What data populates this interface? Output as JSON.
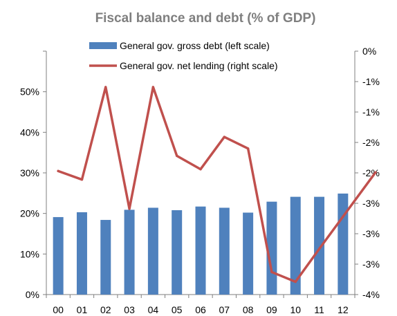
{
  "chart_data": {
    "type": "bar+line",
    "title": "Fiscal balance and debt (% of GDP)",
    "categories": [
      "00",
      "01",
      "02",
      "03",
      "04",
      "05",
      "06",
      "07",
      "08",
      "09",
      "10",
      "11",
      "12"
    ],
    "series": [
      {
        "name": "General gov. gross debt (left scale)",
        "type": "bar",
        "axis": "left",
        "color": "#4f81bd",
        "values": [
          19.1,
          20.3,
          18.4,
          20.9,
          21.4,
          20.8,
          21.7,
          21.4,
          20.2,
          22.9,
          24.1,
          24.1,
          24.9
        ]
      },
      {
        "name": "General gov. net lending (right scale)",
        "type": "line",
        "axis": "right",
        "color": "#c0504d",
        "values": [
          -1.97,
          -2.11,
          -0.59,
          -2.59,
          -0.59,
          -1.72,
          -1.94,
          -1.41,
          -1.6,
          -3.63,
          -3.79,
          -3.25,
          -2.72
        ]
      }
    ],
    "left_axis": {
      "ylim": [
        0,
        60
      ],
      "ticks": [
        0,
        10,
        20,
        30,
        40,
        50
      ],
      "tick_labels": [
        "0%",
        "10%",
        "20%",
        "30%",
        "40%",
        "50%"
      ]
    },
    "right_axis": {
      "ylim": [
        -4,
        0
      ],
      "ticks": [
        0,
        -0.5,
        -1,
        -1.5,
        -2,
        -2.5,
        -3,
        -3.5,
        -4
      ],
      "tick_labels": [
        "0%",
        "-1%",
        "-1%",
        "-2%",
        "-2%",
        "-3%",
        "-3%",
        "-3%",
        "-4%"
      ]
    },
    "grid": false,
    "legend": "top-center"
  }
}
